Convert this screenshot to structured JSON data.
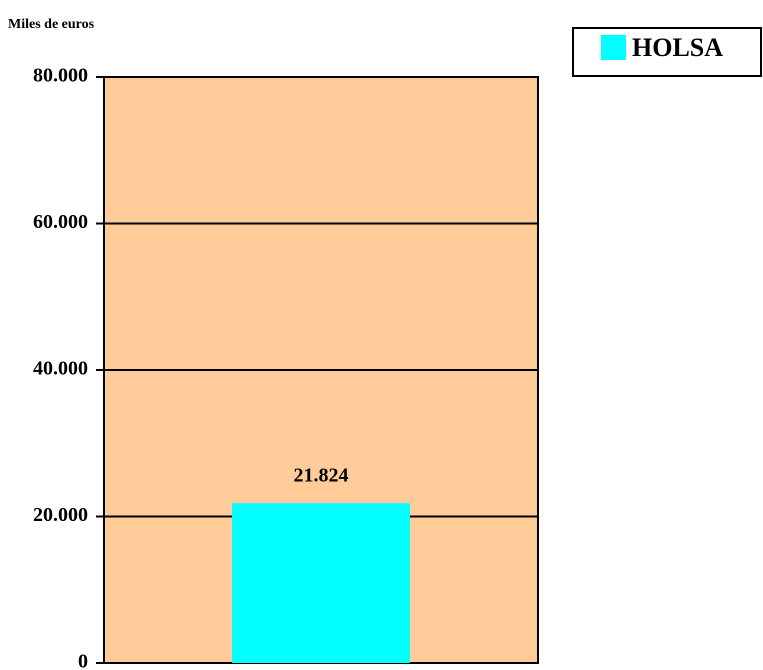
{
  "chart_data": {
    "type": "bar",
    "y_axis_label": "Miles de euros",
    "categories": [
      null
    ],
    "series": [
      {
        "name": "HOLSA",
        "color": "#00ffff",
        "values": [
          21824
        ],
        "value_labels": [
          "21.824"
        ]
      }
    ],
    "ylim": [
      0,
      80000
    ],
    "yticks": [
      0,
      {
        "value": 20000,
        "label": "20.000"
      },
      {
        "value": 40000,
        "label": "40.000"
      },
      {
        "value": 60000,
        "label": "60.000"
      },
      {
        "value": 80000,
        "label": "80.000"
      }
    ],
    "grid": true,
    "plot_background": "#ffcc99",
    "legend": "top-right"
  }
}
